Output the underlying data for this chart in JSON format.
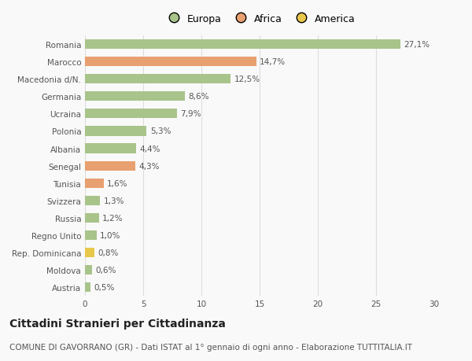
{
  "categories": [
    "Austria",
    "Moldova",
    "Rep. Dominicana",
    "Regno Unito",
    "Russia",
    "Svizzera",
    "Tunisia",
    "Senegal",
    "Albania",
    "Polonia",
    "Ucraina",
    "Germania",
    "Macedonia d/N.",
    "Marocco",
    "Romania"
  ],
  "values": [
    0.5,
    0.6,
    0.8,
    1.0,
    1.2,
    1.3,
    1.6,
    4.3,
    4.4,
    5.3,
    7.9,
    8.6,
    12.5,
    14.7,
    27.1
  ],
  "labels": [
    "0,5%",
    "0,6%",
    "0,8%",
    "1,0%",
    "1,2%",
    "1,3%",
    "1,6%",
    "4,3%",
    "4,4%",
    "5,3%",
    "7,9%",
    "8,6%",
    "12,5%",
    "14,7%",
    "27,1%"
  ],
  "colors": [
    "#a8c48a",
    "#a8c48a",
    "#e8c84a",
    "#a8c48a",
    "#a8c48a",
    "#a8c48a",
    "#e8a070",
    "#e8a070",
    "#a8c48a",
    "#a8c48a",
    "#a8c48a",
    "#a8c48a",
    "#a8c48a",
    "#e8a070",
    "#a8c48a"
  ],
  "legend_labels": [
    "Europa",
    "Africa",
    "America"
  ],
  "legend_colors": [
    "#a8c48a",
    "#e8a070",
    "#e8c84a"
  ],
  "title": "Cittadini Stranieri per Cittadinanza",
  "subtitle": "COMUNE DI GAVORRANO (GR) - Dati ISTAT al 1° gennaio di ogni anno - Elaborazione TUTTITALIA.IT",
  "xlim": [
    0,
    30
  ],
  "xticks": [
    0,
    5,
    10,
    15,
    20,
    25,
    30
  ],
  "bg_color": "#f9f9f9",
  "grid_color": "#dddddd",
  "bar_height": 0.55,
  "title_fontsize": 10,
  "subtitle_fontsize": 7.5,
  "label_fontsize": 7.5,
  "tick_fontsize": 7.5,
  "legend_fontsize": 9
}
